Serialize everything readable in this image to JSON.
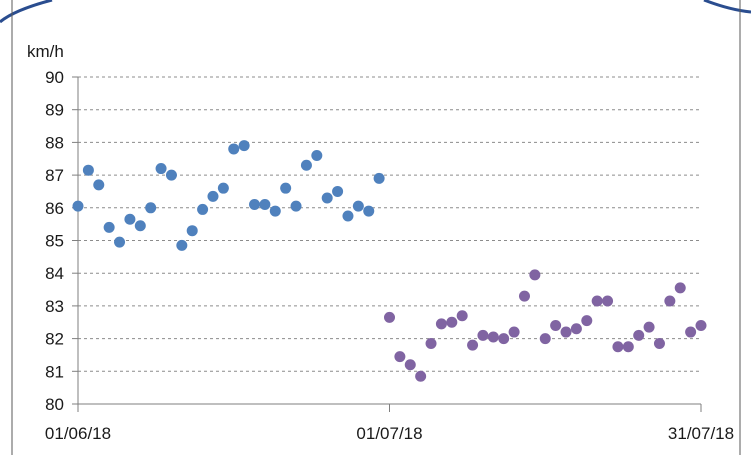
{
  "chart_data": {
    "type": "scatter",
    "title": "",
    "xlabel": "",
    "ylabel": "km/h",
    "ylim": [
      80,
      90
    ],
    "yticks": [
      80,
      81,
      82,
      83,
      84,
      85,
      86,
      87,
      88,
      89,
      90
    ],
    "xticks": [
      "01/06/18",
      "01/07/18",
      "31/07/18"
    ],
    "xlim": [
      "01/06/18",
      "31/07/18"
    ],
    "grid": true,
    "legend": "none",
    "series": [
      {
        "color": "#4f81bd",
        "points": [
          {
            "x": "01/06/18",
            "y": 86.05
          },
          {
            "x": "02/06/18",
            "y": 87.15
          },
          {
            "x": "03/06/18",
            "y": 86.7
          },
          {
            "x": "04/06/18",
            "y": 85.4
          },
          {
            "x": "05/06/18",
            "y": 84.95
          },
          {
            "x": "06/06/18",
            "y": 85.65
          },
          {
            "x": "07/06/18",
            "y": 85.45
          },
          {
            "x": "08/06/18",
            "y": 86.0
          },
          {
            "x": "09/06/18",
            "y": 87.2
          },
          {
            "x": "10/06/18",
            "y": 87.0
          },
          {
            "x": "11/06/18",
            "y": 84.85
          },
          {
            "x": "12/06/18",
            "y": 85.3
          },
          {
            "x": "13/06/18",
            "y": 85.95
          },
          {
            "x": "14/06/18",
            "y": 86.35
          },
          {
            "x": "15/06/18",
            "y": 86.6
          },
          {
            "x": "16/06/18",
            "y": 87.8
          },
          {
            "x": "17/06/18",
            "y": 87.9
          },
          {
            "x": "18/06/18",
            "y": 86.1
          },
          {
            "x": "19/06/18",
            "y": 86.1
          },
          {
            "x": "20/06/18",
            "y": 85.9
          },
          {
            "x": "21/06/18",
            "y": 86.6
          },
          {
            "x": "22/06/18",
            "y": 86.05
          },
          {
            "x": "23/06/18",
            "y": 87.3
          },
          {
            "x": "24/06/18",
            "y": 87.6
          },
          {
            "x": "25/06/18",
            "y": 86.3
          },
          {
            "x": "26/06/18",
            "y": 86.5
          },
          {
            "x": "27/06/18",
            "y": 85.75
          },
          {
            "x": "28/06/18",
            "y": 86.05
          },
          {
            "x": "29/06/18",
            "y": 85.9
          },
          {
            "x": "30/06/18",
            "y": 86.9
          }
        ]
      },
      {
        "color": "#8064a2",
        "points": [
          {
            "x": "01/07/18",
            "y": 82.65
          },
          {
            "x": "02/07/18",
            "y": 81.45
          },
          {
            "x": "03/07/18",
            "y": 81.2
          },
          {
            "x": "04/07/18",
            "y": 80.85
          },
          {
            "x": "05/07/18",
            "y": 81.85
          },
          {
            "x": "06/07/18",
            "y": 82.45
          },
          {
            "x": "07/07/18",
            "y": 82.5
          },
          {
            "x": "08/07/18",
            "y": 82.7
          },
          {
            "x": "09/07/18",
            "y": 81.8
          },
          {
            "x": "10/07/18",
            "y": 82.1
          },
          {
            "x": "11/07/18",
            "y": 82.05
          },
          {
            "x": "12/07/18",
            "y": 82.0
          },
          {
            "x": "13/07/18",
            "y": 82.2
          },
          {
            "x": "14/07/18",
            "y": 83.3
          },
          {
            "x": "15/07/18",
            "y": 83.95
          },
          {
            "x": "16/07/18",
            "y": 82.0
          },
          {
            "x": "17/07/18",
            "y": 82.4
          },
          {
            "x": "18/07/18",
            "y": 82.2
          },
          {
            "x": "19/07/18",
            "y": 82.3
          },
          {
            "x": "20/07/18",
            "y": 82.55
          },
          {
            "x": "21/07/18",
            "y": 83.15
          },
          {
            "x": "22/07/18",
            "y": 83.15
          },
          {
            "x": "23/07/18",
            "y": 81.75
          },
          {
            "x": "24/07/18",
            "y": 81.75
          },
          {
            "x": "25/07/18",
            "y": 82.1
          },
          {
            "x": "26/07/18",
            "y": 82.35
          },
          {
            "x": "27/07/18",
            "y": 81.85
          },
          {
            "x": "28/07/18",
            "y": 83.15
          },
          {
            "x": "29/07/18",
            "y": 83.55
          },
          {
            "x": "30/07/18",
            "y": 82.2
          },
          {
            "x": "31/07/18",
            "y": 82.4
          }
        ]
      }
    ]
  }
}
